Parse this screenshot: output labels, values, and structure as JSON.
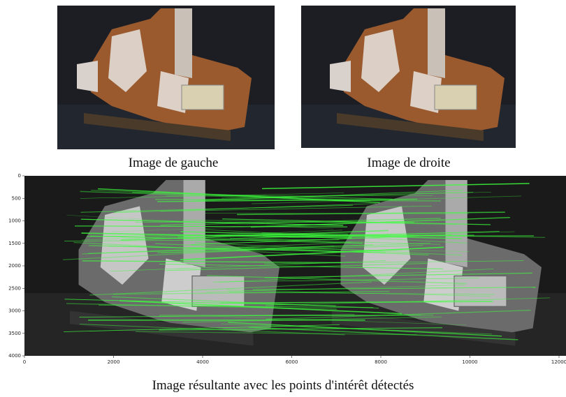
{
  "figure": {
    "left_caption": "Image de gauche",
    "right_caption": "Image de droite",
    "caption": "Image résultante avec les points d'intérêt détectés"
  },
  "plot": {
    "xlim": [
      0,
      12000
    ],
    "xticks": [
      0,
      2000,
      4000,
      6000,
      8000,
      10000,
      12000
    ],
    "ylim": [
      4000,
      0
    ],
    "yticks": [
      0,
      500,
      1000,
      1500,
      2000,
      2500,
      3000,
      3500,
      4000
    ]
  }
}
